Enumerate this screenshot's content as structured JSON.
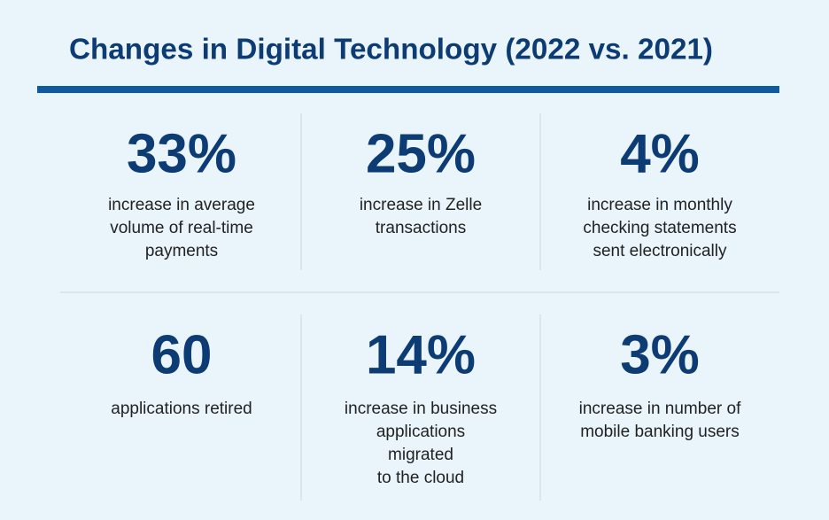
{
  "title": "Changes in Digital Technology (2022 vs. 2021)",
  "stats": [
    {
      "value": "33%",
      "lines": [
        "increase in average",
        "volume of real-time",
        "payments"
      ]
    },
    {
      "value": "25%",
      "lines": [
        "increase in Zelle",
        "transactions"
      ]
    },
    {
      "value": "4%",
      "lines": [
        "increase in monthly",
        "checking statements",
        "sent electronically"
      ]
    },
    {
      "value": "60",
      "lines": [
        "applications retired"
      ]
    },
    {
      "value": "14%",
      "lines": [
        "increase in business",
        "applications",
        "migrated",
        "to the cloud"
      ]
    },
    {
      "value": "3%",
      "lines": [
        "increase in number of",
        "mobile banking users"
      ]
    }
  ]
}
